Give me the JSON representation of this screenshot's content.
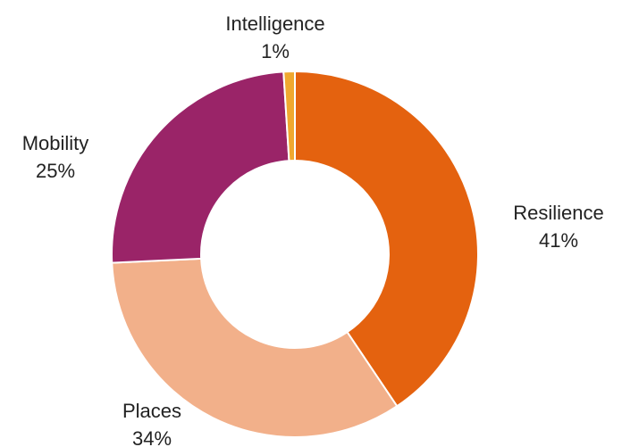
{
  "chart_data": {
    "type": "donut",
    "categories": [
      "Resilience",
      "Places",
      "Mobility",
      "Intelligence"
    ],
    "values": [
      41,
      34,
      25,
      1
    ],
    "value_labels": [
      "41%",
      "34%",
      "25%",
      "1%"
    ],
    "colors": [
      "#e4620f",
      "#f2b08a",
      "#9a2468",
      "#f0a830"
    ]
  }
}
